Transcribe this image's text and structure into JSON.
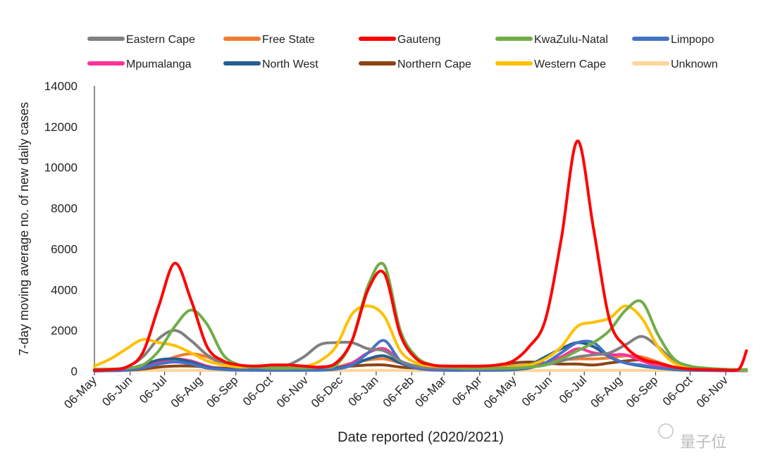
{
  "chart_data": {
    "type": "line",
    "title": "",
    "xlabel": "Date reported (2020/2021)",
    "ylabel": "7-day moving average no. of new daily cases",
    "ylim": [
      0,
      14000
    ],
    "yticks": [
      0,
      2000,
      4000,
      6000,
      8000,
      10000,
      12000,
      14000
    ],
    "xlim": [
      "2020-05-06",
      "2021-11-24"
    ],
    "xtick_dates": [
      "2020-05-06",
      "2020-06-06",
      "2020-07-06",
      "2020-08-06",
      "2020-09-06",
      "2020-10-06",
      "2020-11-06",
      "2020-12-06",
      "2021-01-06",
      "2021-02-06",
      "2021-03-06",
      "2021-04-06",
      "2021-05-06",
      "2021-06-06",
      "2021-07-06",
      "2021-08-06",
      "2021-09-06",
      "2021-10-06",
      "2021-11-06"
    ],
    "xtick_labels": [
      "06-May",
      "06-Jun",
      "06-Jul",
      "06-Aug",
      "06-Sep",
      "06-Oct",
      "06-Nov",
      "06-Dec",
      "06-Jan",
      "06-Feb",
      "06-Mar",
      "06-Apr",
      "06-May",
      "06-Jun",
      "06-Jul",
      "06-Aug",
      "06-Sep",
      "06-Oct",
      "06-Nov"
    ],
    "grid": false,
    "legend_placement": "top",
    "x": [
      "2020-05-06",
      "2020-05-20",
      "2020-06-03",
      "2020-06-17",
      "2020-07-01",
      "2020-07-15",
      "2020-07-29",
      "2020-08-12",
      "2020-08-26",
      "2020-09-09",
      "2020-09-23",
      "2020-10-07",
      "2020-10-21",
      "2020-11-04",
      "2020-11-18",
      "2020-12-02",
      "2020-12-16",
      "2020-12-30",
      "2021-01-13",
      "2021-01-27",
      "2021-02-10",
      "2021-02-24",
      "2021-03-10",
      "2021-03-24",
      "2021-04-07",
      "2021-04-21",
      "2021-05-05",
      "2021-05-19",
      "2021-06-02",
      "2021-06-16",
      "2021-06-30",
      "2021-07-14",
      "2021-07-28",
      "2021-08-11",
      "2021-08-25",
      "2021-09-08",
      "2021-09-22",
      "2021-10-06",
      "2021-10-20",
      "2021-11-03",
      "2021-11-17",
      "2021-11-24"
    ],
    "series": [
      {
        "name": "Unknown",
        "color": "#FFD59A",
        "values": [
          30,
          30,
          30,
          40,
          40,
          40,
          40,
          30,
          30,
          30,
          30,
          30,
          30,
          30,
          30,
          30,
          30,
          40,
          40,
          30,
          30,
          30,
          30,
          30,
          30,
          30,
          30,
          30,
          30,
          40,
          40,
          40,
          40,
          40,
          40,
          30,
          30,
          30,
          30,
          30,
          30,
          30
        ]
      },
      {
        "name": "Northern Cape",
        "color": "#8B4513",
        "values": [
          10,
          20,
          50,
          100,
          200,
          250,
          250,
          200,
          150,
          100,
          100,
          100,
          100,
          100,
          150,
          200,
          250,
          300,
          300,
          200,
          150,
          100,
          100,
          120,
          200,
          300,
          400,
          450,
          400,
          350,
          350,
          300,
          400,
          500,
          550,
          400,
          200,
          100,
          60,
          40,
          30,
          30
        ]
      },
      {
        "name": "Free State",
        "color": "#ED7D31",
        "values": [
          20,
          30,
          80,
          200,
          400,
          700,
          850,
          700,
          350,
          200,
          150,
          150,
          150,
          150,
          150,
          200,
          400,
          550,
          600,
          400,
          200,
          150,
          150,
          150,
          150,
          200,
          250,
          300,
          400,
          550,
          600,
          600,
          650,
          750,
          700,
          450,
          200,
          100,
          60,
          40,
          30,
          30
        ]
      },
      {
        "name": "Mpumalanga",
        "color": "#FF3399",
        "values": [
          10,
          20,
          50,
          200,
          450,
          600,
          500,
          250,
          100,
          60,
          50,
          50,
          50,
          60,
          80,
          150,
          400,
          900,
          1100,
          500,
          150,
          60,
          50,
          50,
          50,
          60,
          100,
          200,
          400,
          700,
          1100,
          900,
          800,
          800,
          500,
          250,
          100,
          50,
          30,
          20,
          20,
          20
        ]
      },
      {
        "name": "North West",
        "color": "#255E91",
        "values": [
          20,
          30,
          100,
          300,
          550,
          600,
          450,
          200,
          100,
          80,
          70,
          70,
          70,
          80,
          100,
          150,
          300,
          600,
          750,
          400,
          150,
          80,
          60,
          60,
          60,
          80,
          150,
          300,
          700,
          1100,
          1400,
          1200,
          700,
          400,
          250,
          150,
          80,
          50,
          40,
          30,
          30,
          30
        ]
      },
      {
        "name": "Limpopo",
        "color": "#4472C4",
        "values": [
          20,
          20,
          50,
          150,
          350,
          450,
          350,
          150,
          80,
          50,
          40,
          40,
          40,
          40,
          50,
          100,
          300,
          900,
          1500,
          500,
          150,
          60,
          40,
          40,
          40,
          40,
          60,
          150,
          400,
          900,
          1400,
          1400,
          700,
          400,
          300,
          150,
          80,
          50,
          40,
          30,
          30,
          30
        ]
      },
      {
        "name": "Eastern Cape",
        "color": "#808080",
        "values": [
          50,
          80,
          200,
          700,
          1600,
          2000,
          1500,
          800,
          400,
          250,
          200,
          200,
          300,
          700,
          1300,
          1400,
          1400,
          1100,
          1000,
          500,
          250,
          150,
          150,
          120,
          120,
          120,
          150,
          200,
          300,
          500,
          700,
          800,
          900,
          1300,
          1700,
          1200,
          500,
          200,
          100,
          60,
          50,
          50
        ]
      },
      {
        "name": "Western Cape",
        "color": "#FFC000",
        "values": [
          250,
          600,
          1100,
          1550,
          1400,
          1250,
          900,
          500,
          300,
          200,
          200,
          150,
          150,
          200,
          500,
          1200,
          2800,
          3200,
          2700,
          1000,
          400,
          250,
          200,
          150,
          150,
          150,
          200,
          300,
          600,
          1200,
          2200,
          2400,
          2600,
          3200,
          2600,
          1200,
          400,
          200,
          100,
          80,
          60,
          60
        ]
      },
      {
        "name": "KwaZulu-Natal",
        "color": "#70AD47",
        "values": [
          100,
          100,
          150,
          300,
          1000,
          2200,
          3000,
          2300,
          800,
          300,
          200,
          150,
          150,
          150,
          200,
          300,
          1500,
          4200,
          5200,
          2000,
          700,
          300,
          200,
          150,
          150,
          150,
          150,
          200,
          300,
          600,
          1000,
          1400,
          2000,
          3000,
          3400,
          1800,
          600,
          250,
          150,
          100,
          80,
          80
        ]
      },
      {
        "name": "Gauteng",
        "color": "#FF0000",
        "values": [
          50,
          80,
          200,
          900,
          3200,
          5300,
          3500,
          1200,
          500,
          300,
          250,
          300,
          300,
          250,
          200,
          400,
          1500,
          4000,
          4800,
          1800,
          600,
          300,
          250,
          250,
          250,
          300,
          500,
          1200,
          2500,
          6500,
          11300,
          7000,
          2500,
          1200,
          600,
          400,
          200,
          100,
          80,
          60,
          80,
          1000
        ]
      }
    ],
    "legend_order": [
      "Eastern Cape",
      "Free State",
      "Gauteng",
      "KwaZulu-Natal",
      "Limpopo",
      "Mpumalanga",
      "North West",
      "Northern Cape",
      "Western Cape",
      "Unknown"
    ]
  },
  "watermark": "量子位"
}
